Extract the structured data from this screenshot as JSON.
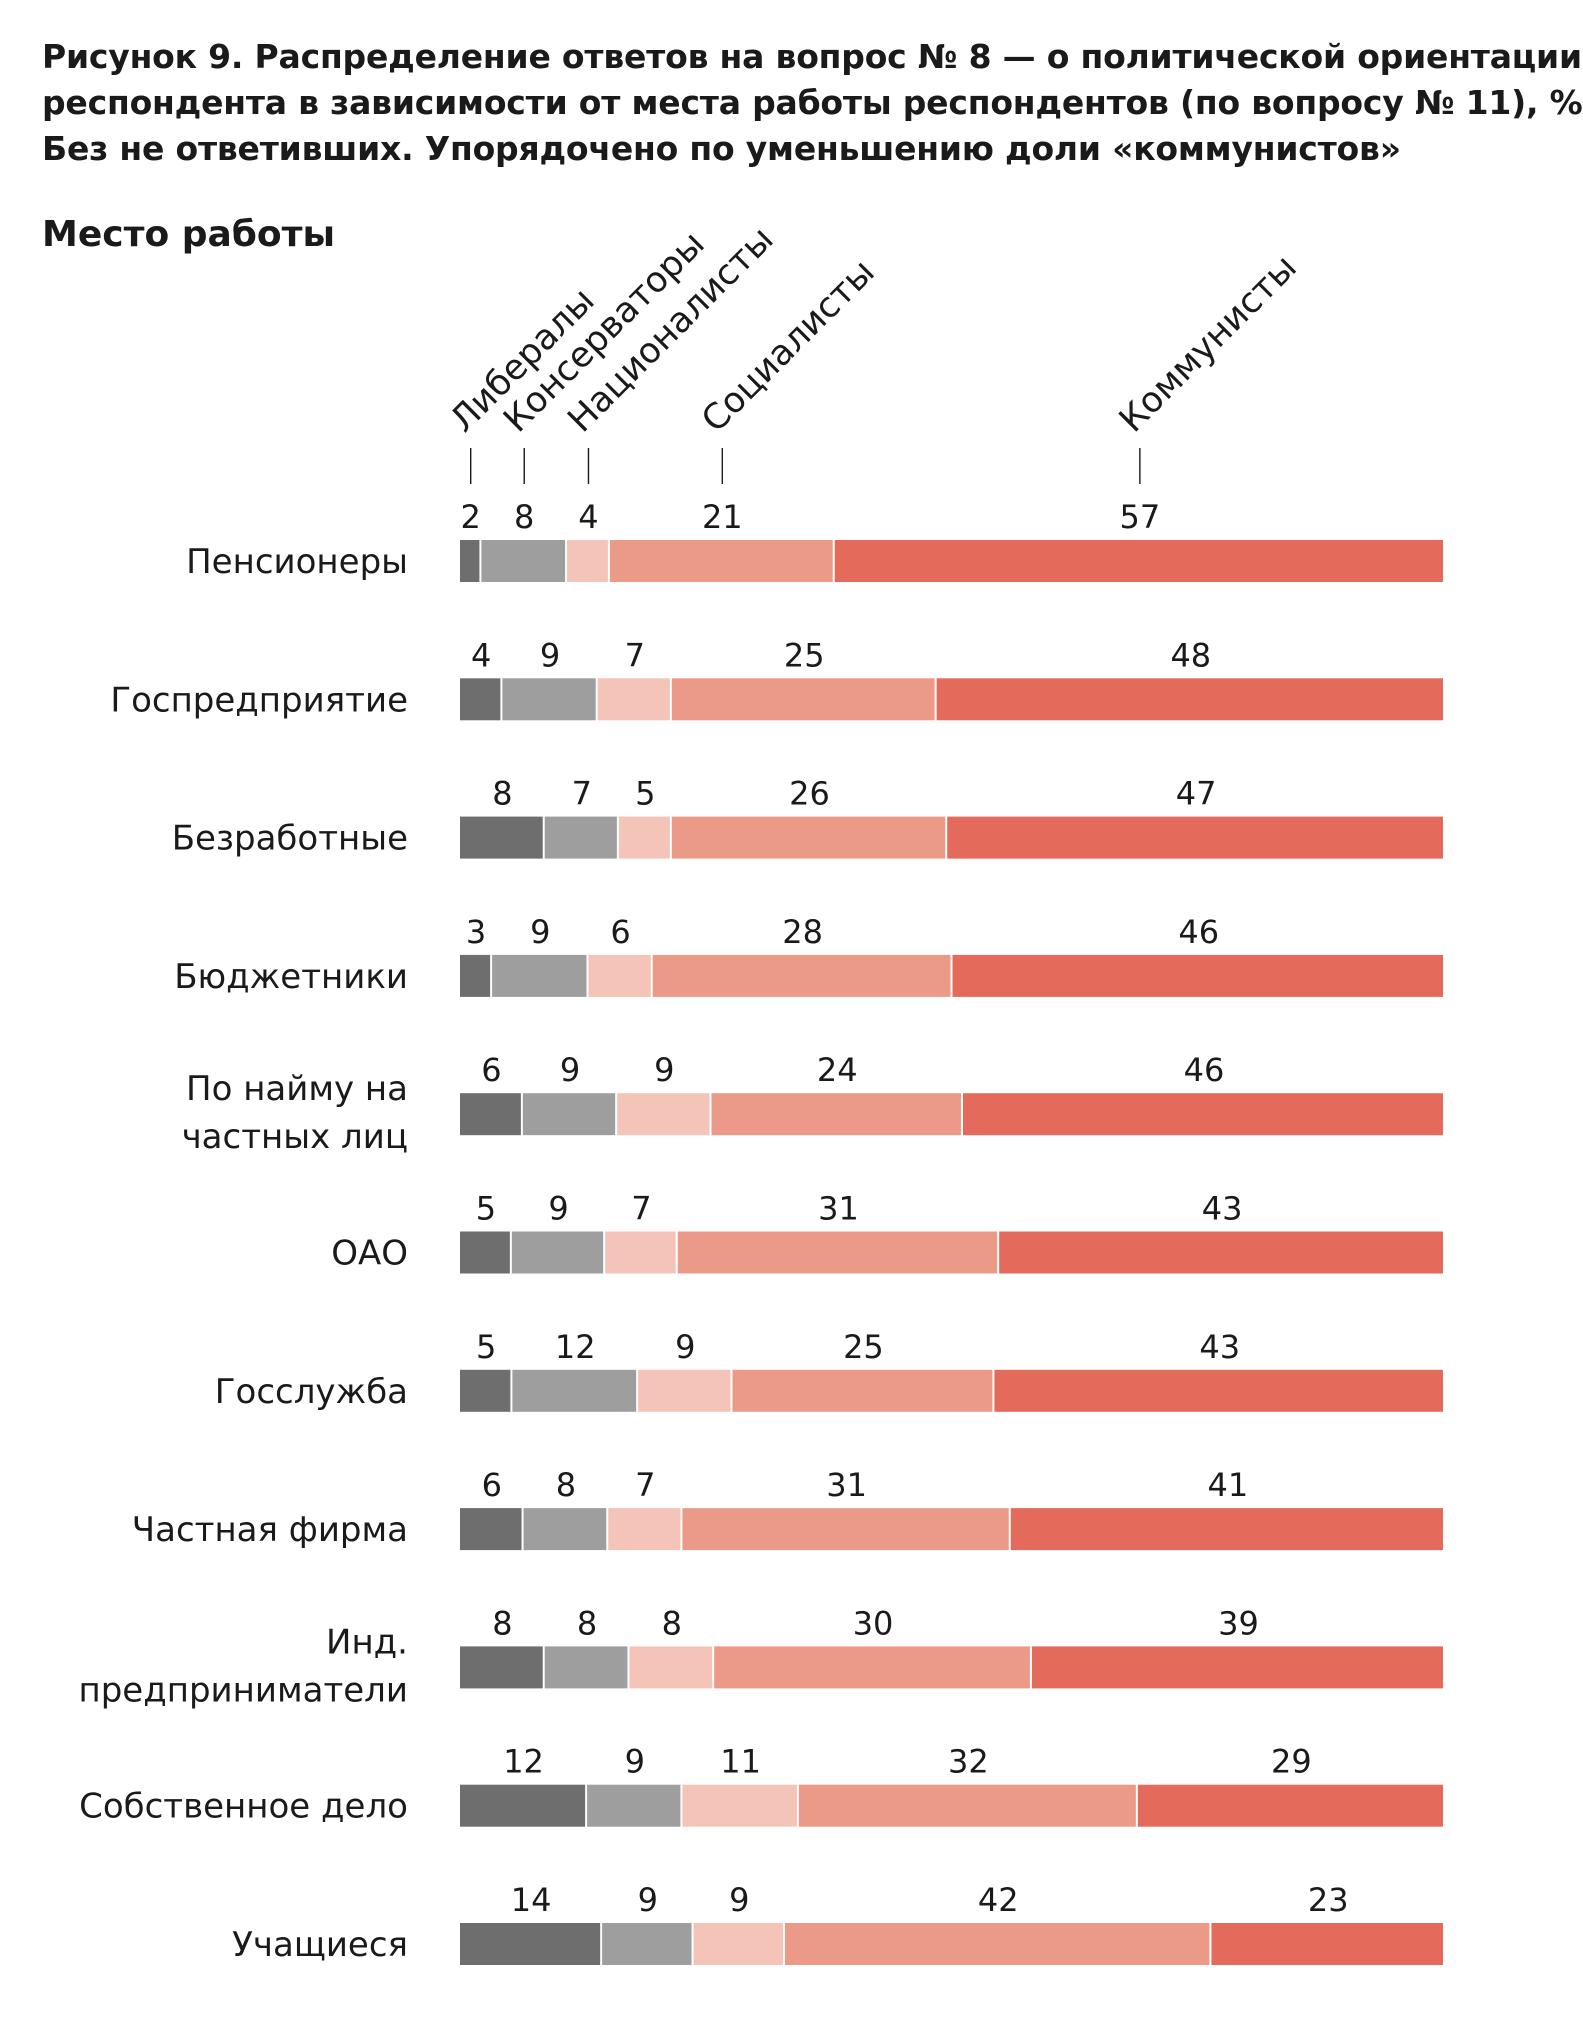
{
  "title_lines": [
    "Рисунок 9. Распределение ответов на вопрос № 8 — о политической ориентации",
    "респондента в зависимости от места работы респондентов (по вопросу № 11), %.",
    "Без не ответивших. Упорядочено по уменьшению доли «коммунистов»"
  ],
  "subtitle": "Место работы",
  "chart_data": {
    "type": "bar",
    "orientation": "horizontal",
    "stacked": true,
    "categories": [
      [
        "Пенсионеры"
      ],
      [
        "Госпредприятие"
      ],
      [
        "Безработные"
      ],
      [
        "Бюджетники"
      ],
      [
        "По найму на",
        "частных лиц"
      ],
      [
        "ОАО"
      ],
      [
        "Госслужба"
      ],
      [
        "Частная фирма"
      ],
      [
        "Инд.",
        "предприниматели"
      ],
      [
        "Собственное дело"
      ],
      [
        "Учащиеся"
      ]
    ],
    "series": [
      {
        "name": "Либералы",
        "color": "#6e6e6e",
        "values": [
          2,
          4,
          8,
          3,
          6,
          5,
          5,
          6,
          8,
          12,
          14
        ]
      },
      {
        "name": "Консерваторы",
        "color": "#9e9e9e",
        "values": [
          8,
          9,
          7,
          9,
          9,
          9,
          12,
          8,
          8,
          9,
          9
        ]
      },
      {
        "name": "Националисты",
        "color": "#f4c4b8",
        "values": [
          4,
          7,
          5,
          6,
          9,
          7,
          9,
          7,
          8,
          11,
          9
        ]
      },
      {
        "name": "Социалисты",
        "color": "#ec9a88",
        "values": [
          21,
          25,
          26,
          28,
          24,
          31,
          25,
          31,
          30,
          32,
          42
        ]
      },
      {
        "name": "Коммунисты",
        "color": "#e46a5c",
        "values": [
          57,
          48,
          47,
          46,
          46,
          43,
          43,
          41,
          39,
          29,
          23
        ]
      }
    ],
    "legend": "rotated labels above first bar",
    "data_labels": "above segments",
    "xlim": [
      0,
      100
    ]
  }
}
